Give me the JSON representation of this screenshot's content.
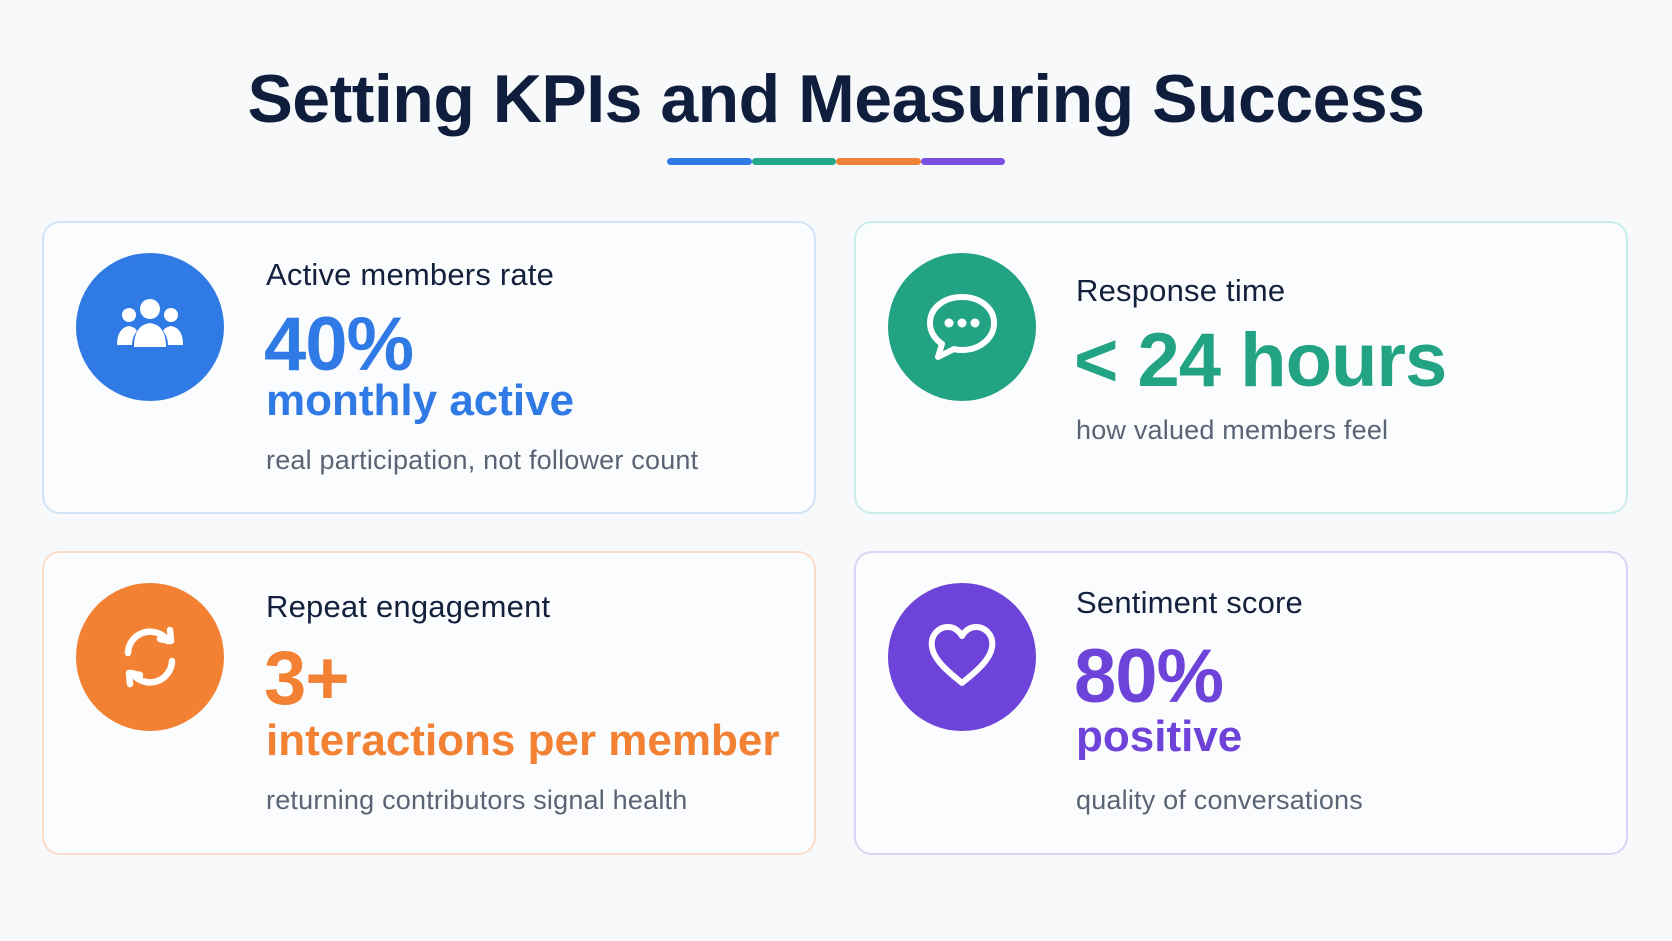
{
  "title": "Setting KPIs and Measuring Success",
  "underline_colors": [
    "#2f7ae5",
    "#22a88a",
    "#f08236",
    "#7a4ede"
  ],
  "cards": [
    {
      "label": "Active members rate",
      "value": "40%",
      "unit": "monthly active",
      "description": "real participation, not follower count",
      "accent": "#2f7ae5",
      "border": "#cfe4f7",
      "icon": "users-icon"
    },
    {
      "label": "Response time",
      "value": "< 24 hours",
      "unit": "",
      "description": "how valued members feel",
      "accent": "#22a383",
      "border": "#c9eee8",
      "icon": "chat-bubble-icon"
    },
    {
      "label": "Repeat engagement",
      "value": "3+",
      "unit": "interactions per member",
      "description": "returning contributors signal health",
      "accent": "#f28134",
      "border": "#fadcc7",
      "icon": "refresh-icon"
    },
    {
      "label": "Sentiment score",
      "value": "80%",
      "unit": "positive",
      "description": "quality of conversations",
      "accent": "#6e43d9",
      "border": "#ddd3f4",
      "icon": "heart-icon"
    }
  ]
}
